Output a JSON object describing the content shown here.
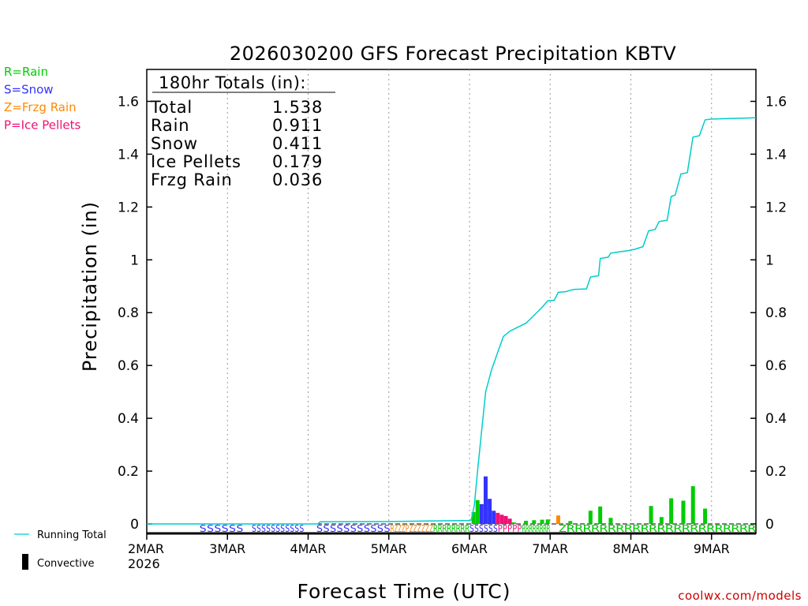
{
  "chart_data": {
    "type": "bar",
    "title": "2026030200 GFS Forecast Precipitation KBTV",
    "xlabel": "Forecast Time (UTC)",
    "ylabel": "Precipitation (in)",
    "ylim": [
      0,
      1.7
    ],
    "xlim_days": [
      0,
      7.55
    ],
    "yticks": [
      0,
      0.2,
      0.4,
      0.6,
      0.8,
      1,
      1.2,
      1.4,
      1.6
    ],
    "ytick_labels": [
      "0",
      "0.2",
      "0.4",
      "0.6",
      "0.8",
      "1",
      "1.2",
      "1.4",
      "1.6"
    ],
    "xticks_days": [
      0,
      1,
      2,
      3,
      4,
      5,
      6,
      7
    ],
    "xtick_labels": [
      "2MAR",
      "3MAR",
      "4MAR",
      "5MAR",
      "6MAR",
      "7MAR",
      "8MAR",
      "9MAR"
    ],
    "x_first_year_label": "2026",
    "legend_types": [
      {
        "label": "R=Rain",
        "color": "#00cc00"
      },
      {
        "label": "S=Snow",
        "color": "#3333ff"
      },
      {
        "label": "Z=Frzg Rain",
        "color": "#ff8800"
      },
      {
        "label": "P=Ice Pellets",
        "color": "#ee1177"
      }
    ],
    "legend_lines": [
      {
        "label": "Running Total",
        "color": "#00cccc"
      },
      {
        "label": "Convective",
        "color": "#000000"
      }
    ],
    "totals_box": {
      "header": "180hr Totals (in):",
      "rows": [
        {
          "label": "Total",
          "value": "1.538"
        },
        {
          "label": "Rain",
          "value": "0.911"
        },
        {
          "label": "Snow",
          "value": "0.411"
        },
        {
          "label": "Ice Pellets",
          "value": "0.179"
        },
        {
          "label": "Frzg Rain",
          "value": "0.036"
        }
      ]
    },
    "series": [
      {
        "name": "Running Total",
        "type": "line",
        "color": "#00cccc",
        "points": [
          [
            0,
            0
          ],
          [
            2.12,
            0
          ],
          [
            2.15,
            0.008
          ],
          [
            3.0,
            0.009
          ],
          [
            3.5,
            0.011
          ],
          [
            4.0,
            0.013
          ],
          [
            4.02,
            0.015
          ],
          [
            4.06,
            0.07
          ],
          [
            4.1,
            0.2
          ],
          [
            4.15,
            0.35
          ],
          [
            4.2,
            0.5
          ],
          [
            4.27,
            0.58
          ],
          [
            4.35,
            0.65
          ],
          [
            4.42,
            0.71
          ],
          [
            4.5,
            0.73
          ],
          [
            4.6,
            0.745
          ],
          [
            4.7,
            0.76
          ],
          [
            4.8,
            0.79
          ],
          [
            4.9,
            0.82
          ],
          [
            4.97,
            0.845
          ],
          [
            5.05,
            0.847
          ],
          [
            5.1,
            0.877
          ],
          [
            5.2,
            0.88
          ],
          [
            5.25,
            0.885
          ],
          [
            5.3,
            0.888
          ],
          [
            5.45,
            0.89
          ],
          [
            5.5,
            0.935
          ],
          [
            5.6,
            0.94
          ],
          [
            5.62,
            1.005
          ],
          [
            5.72,
            1.01
          ],
          [
            5.75,
            1.025
          ],
          [
            5.85,
            1.03
          ],
          [
            5.97,
            1.035
          ],
          [
            6.05,
            1.04
          ],
          [
            6.15,
            1.05
          ],
          [
            6.22,
            1.11
          ],
          [
            6.3,
            1.115
          ],
          [
            6.35,
            1.145
          ],
          [
            6.45,
            1.15
          ],
          [
            6.5,
            1.24
          ],
          [
            6.55,
            1.245
          ],
          [
            6.62,
            1.325
          ],
          [
            6.7,
            1.33
          ],
          [
            6.77,
            1.465
          ],
          [
            6.85,
            1.47
          ],
          [
            6.92,
            1.53
          ],
          [
            7.0,
            1.533
          ],
          [
            7.55,
            1.538
          ]
        ]
      },
      {
        "name": "Rain",
        "color": "#00cc00",
        "points": [
          [
            4.05,
            0.045
          ],
          [
            4.1,
            0.09
          ],
          [
            4.45,
            0.006
          ],
          [
            4.55,
            0.006
          ],
          [
            4.7,
            0.012
          ],
          [
            4.8,
            0.014
          ],
          [
            4.9,
            0.016
          ],
          [
            4.97,
            0.017
          ],
          [
            5.25,
            0.011
          ],
          [
            5.5,
            0.05
          ],
          [
            5.62,
            0.066
          ],
          [
            5.75,
            0.023
          ],
          [
            6.25,
            0.068
          ],
          [
            6.38,
            0.026
          ],
          [
            6.5,
            0.097
          ],
          [
            6.65,
            0.088
          ],
          [
            6.77,
            0.143
          ],
          [
            6.92,
            0.058
          ]
        ]
      },
      {
        "name": "Snow",
        "color": "#3333ff",
        "points": [
          [
            4.15,
            0.075
          ],
          [
            4.2,
            0.18
          ],
          [
            4.25,
            0.095
          ],
          [
            4.3,
            0.05
          ]
        ]
      },
      {
        "name": "Ice Pellets",
        "color": "#ee1177",
        "points": [
          [
            4.35,
            0.042
          ],
          [
            4.4,
            0.035
          ],
          [
            4.45,
            0.03
          ],
          [
            4.5,
            0.02
          ]
        ]
      },
      {
        "name": "Frzg Rain",
        "color": "#ff8800",
        "points": [
          [
            5.1,
            0.032
          ]
        ]
      }
    ],
    "type_strip": [
      {
        "label": "SSSSSS",
        "color": "#3333ff",
        "from_day": 0.65,
        "to_day": 1.2
      },
      {
        "label": "SSSSSSSSSSS",
        "color": "#3333ff",
        "from_day": 1.3,
        "to_day": 1.95
      },
      {
        "label": "SSSSSSSSSSS",
        "color": "#3333ff",
        "from_day": 2.1,
        "to_day": 3.02
      },
      {
        "label": "RZZZP",
        "color": "#ff8800",
        "from_day": 3.02,
        "to_day": 3.25
      },
      {
        "label": "ZZZZZZ",
        "color": "#ff8800",
        "from_day": 3.25,
        "to_day": 3.55
      },
      {
        "label": "RRRRRRRR",
        "color": "#00cc00",
        "from_day": 3.55,
        "to_day": 4.0
      },
      {
        "label": "SSSSSS",
        "color": "#3333ff",
        "from_day": 4.0,
        "to_day": 4.35
      },
      {
        "label": "PPPPP",
        "color": "#ee1177",
        "from_day": 4.35,
        "to_day": 4.65
      },
      {
        "label": "RRRRRRRR",
        "color": "#00cc00",
        "from_day": 4.65,
        "to_day": 5.0
      },
      {
        "label": "ZRRRRRRRRRRRRRRRRRRRRRRR",
        "color": "#00cc00",
        "from_day": 5.1,
        "to_day": 7.55
      }
    ],
    "credit": "coolwx.com/models"
  }
}
